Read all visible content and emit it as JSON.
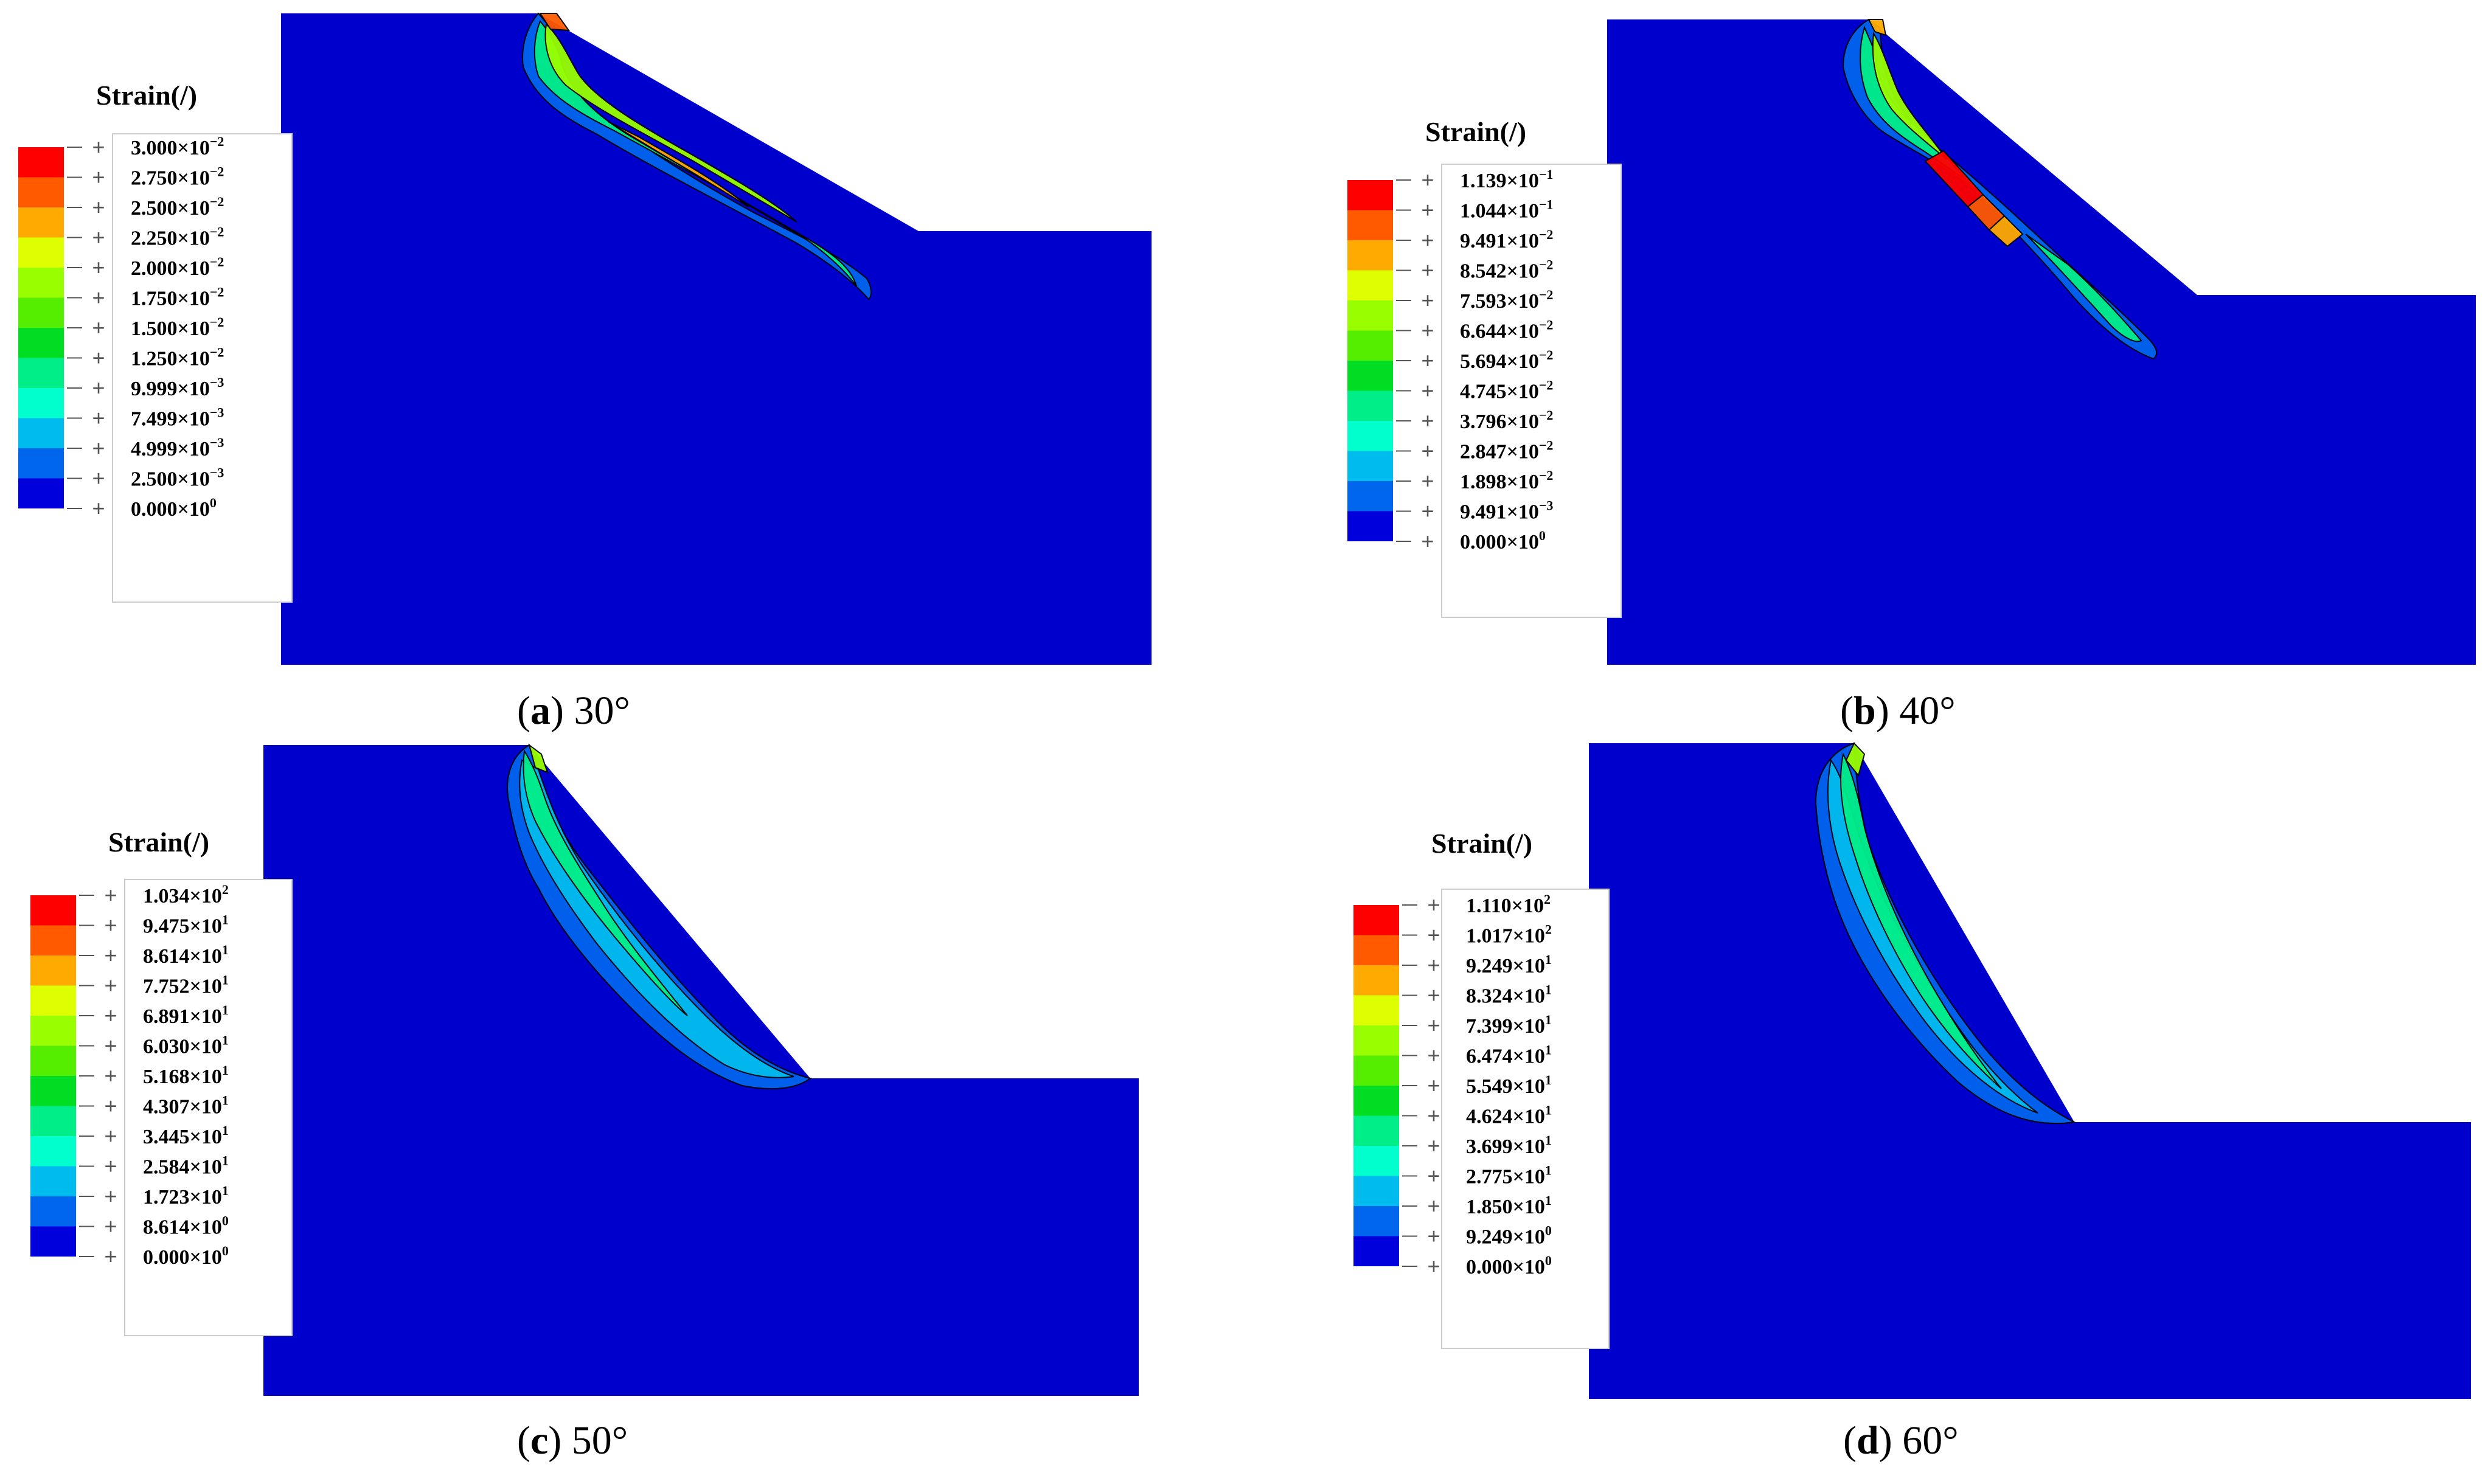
{
  "colors": {
    "model_fill": "#0000cd",
    "contour_stroke": "#000000",
    "legend_bands": [
      "#ff0000",
      "#ff5a00",
      "#ffaa00",
      "#ddff00",
      "#99ff00",
      "#55ee00",
      "#00dd22",
      "#00ee88",
      "#00ffcc",
      "#00bbee",
      "#0066ee",
      "#0000dd"
    ]
  },
  "panels": [
    {
      "id": "a",
      "caption": {
        "letter": "a",
        "angle": "30°"
      },
      "legend": {
        "title": "Strain(/)",
        "ticks": [
          {
            "mant": "3.000",
            "exp": "−2"
          },
          {
            "mant": "2.750",
            "exp": "−2"
          },
          {
            "mant": "2.500",
            "exp": "−2"
          },
          {
            "mant": "2.250",
            "exp": "−2"
          },
          {
            "mant": "2.000",
            "exp": "−2"
          },
          {
            "mant": "1.750",
            "exp": "−2"
          },
          {
            "mant": "1.500",
            "exp": "−2"
          },
          {
            "mant": "1.250",
            "exp": "−2"
          },
          {
            "mant": "9.999",
            "exp": "−3"
          },
          {
            "mant": "7.499",
            "exp": "−3"
          },
          {
            "mant": "4.999",
            "exp": "−3"
          },
          {
            "mant": "2.500",
            "exp": "−3"
          },
          {
            "mant": "0.000",
            "exp": "0"
          }
        ]
      }
    },
    {
      "id": "b",
      "caption": {
        "letter": "b",
        "angle": "40°"
      },
      "legend": {
        "title": "Strain(/)",
        "ticks": [
          {
            "mant": "1.139",
            "exp": "−1"
          },
          {
            "mant": "1.044",
            "exp": "−1"
          },
          {
            "mant": "9.491",
            "exp": "−2"
          },
          {
            "mant": "8.542",
            "exp": "−2"
          },
          {
            "mant": "7.593",
            "exp": "−2"
          },
          {
            "mant": "6.644",
            "exp": "−2"
          },
          {
            "mant": "5.694",
            "exp": "−2"
          },
          {
            "mant": "4.745",
            "exp": "−2"
          },
          {
            "mant": "3.796",
            "exp": "−2"
          },
          {
            "mant": "2.847",
            "exp": "−2"
          },
          {
            "mant": "1.898",
            "exp": "−2"
          },
          {
            "mant": "9.491",
            "exp": "−3"
          },
          {
            "mant": "0.000",
            "exp": "0"
          }
        ]
      }
    },
    {
      "id": "c",
      "caption": {
        "letter": "c",
        "angle": "50°"
      },
      "legend": {
        "title": "Strain(/)",
        "ticks": [
          {
            "mant": "1.034",
            "exp": "2"
          },
          {
            "mant": "9.475",
            "exp": "1"
          },
          {
            "mant": "8.614",
            "exp": "1"
          },
          {
            "mant": "7.752",
            "exp": "1"
          },
          {
            "mant": "6.891",
            "exp": "1"
          },
          {
            "mant": "6.030",
            "exp": "1"
          },
          {
            "mant": "5.168",
            "exp": "1"
          },
          {
            "mant": "4.307",
            "exp": "1"
          },
          {
            "mant": "3.445",
            "exp": "1"
          },
          {
            "mant": "2.584",
            "exp": "1"
          },
          {
            "mant": "1.723",
            "exp": "1"
          },
          {
            "mant": "8.614",
            "exp": "0"
          },
          {
            "mant": "0.000",
            "exp": "0"
          }
        ]
      }
    },
    {
      "id": "d",
      "caption": {
        "letter": "d",
        "angle": "60°"
      },
      "legend": {
        "title": "Strain(/)",
        "ticks": [
          {
            "mant": "1.110",
            "exp": "2"
          },
          {
            "mant": "1.017",
            "exp": "2"
          },
          {
            "mant": "9.249",
            "exp": "1"
          },
          {
            "mant": "8.324",
            "exp": "1"
          },
          {
            "mant": "7.399",
            "exp": "1"
          },
          {
            "mant": "6.474",
            "exp": "1"
          },
          {
            "mant": "5.549",
            "exp": "1"
          },
          {
            "mant": "4.624",
            "exp": "1"
          },
          {
            "mant": "3.699",
            "exp": "1"
          },
          {
            "mant": "2.775",
            "exp": "1"
          },
          {
            "mant": "1.850",
            "exp": "1"
          },
          {
            "mant": "9.249",
            "exp": "0"
          },
          {
            "mant": "0.000",
            "exp": "0"
          }
        ]
      }
    }
  ]
}
